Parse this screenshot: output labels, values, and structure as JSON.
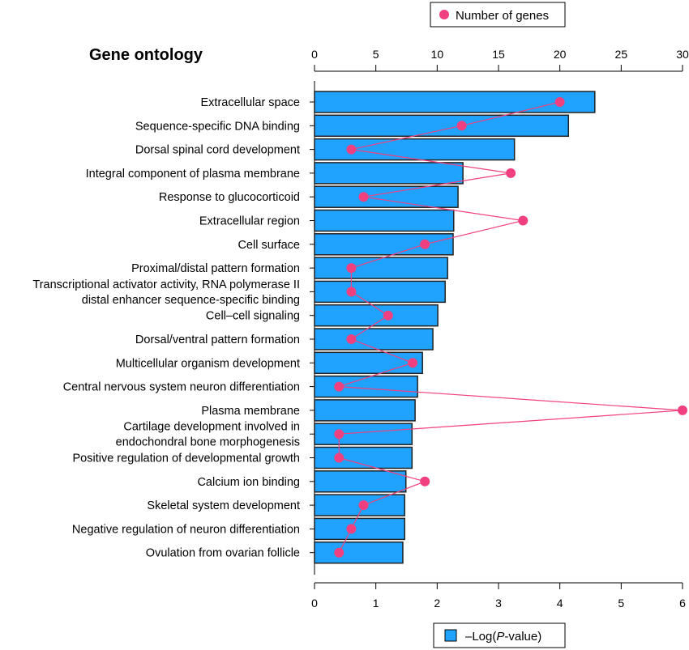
{
  "chart_data": {
    "type": "bar",
    "title": "Gene ontology",
    "orientation": "horizontal",
    "categories": [
      "Extracellular space",
      "Sequence-specific DNA binding",
      "Dorsal spinal cord development",
      "Integral component of plasma membrane",
      "Response to glucocorticoid",
      "Extracellular region",
      "Cell surface",
      "Proximal/distal pattern formation",
      "Transcriptional activator activity, RNA polymerase II\ndistal enhancer sequence-specific binding",
      "Cell–cell signaling",
      "Dorsal/ventral pattern formation",
      "Multicellular organism development",
      "Central nervous system neuron differentiation",
      "Plasma membrane",
      "Cartilage development involved in\nendochondral bone morphogenesis",
      "Positive regulation of developmental growth",
      "Calcium ion binding",
      "Skeletal system development",
      "Negative regulation of neuron differentiation",
      "Ovulation from ovarian follicle"
    ],
    "series": [
      {
        "name": "–Log(P-value)",
        "type": "bar",
        "axis": "bottom",
        "color": "#1fa3ff",
        "values": [
          4.57,
          4.14,
          3.26,
          2.42,
          2.34,
          2.27,
          2.26,
          2.17,
          2.13,
          2.01,
          1.93,
          1.76,
          1.68,
          1.64,
          1.59,
          1.59,
          1.49,
          1.47,
          1.47,
          1.44
        ]
      },
      {
        "name": "Number of genes",
        "type": "line",
        "axis": "top",
        "color": "#f0407f",
        "values": [
          20,
          12,
          3,
          16,
          4,
          17,
          9,
          3,
          3,
          6,
          3,
          8,
          2,
          30,
          2,
          2,
          9,
          4,
          3,
          2
        ]
      }
    ],
    "bottom_axis": {
      "range": [
        0,
        6
      ],
      "ticks": [
        "0",
        "1",
        "2",
        "3",
        "4",
        "5",
        "6"
      ]
    },
    "top_axis": {
      "range": [
        0,
        30
      ],
      "ticks": [
        "0",
        "5",
        "10",
        "15",
        "20",
        "25",
        "30"
      ]
    },
    "legend_top": "Number of genes",
    "legend_bottom_prefix": "–Log(",
    "legend_bottom_italic": "P",
    "legend_bottom_suffix": "-value)",
    "grid": false
  }
}
